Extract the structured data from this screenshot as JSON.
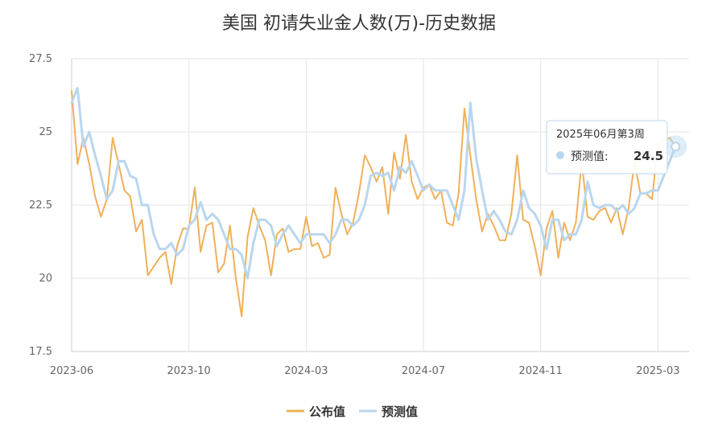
{
  "chart_data": {
    "type": "line",
    "title": "美国 初请失业金人数(万)-历史数据",
    "xlabel": "",
    "ylabel": "",
    "ylim": [
      17.5,
      27.5
    ],
    "yticks": [
      "17.5",
      "20",
      "22.5",
      "25",
      "27.5"
    ],
    "x_ticks": [
      {
        "label": "2023-06",
        "index": 0
      },
      {
        "label": "2023-10",
        "index": 20
      },
      {
        "label": "2024-03",
        "index": 40
      },
      {
        "label": "2024-07",
        "index": 60
      },
      {
        "label": "2024-11",
        "index": 80
      },
      {
        "label": "2025-03",
        "index": 100
      }
    ],
    "grid": true,
    "legend": "bottom",
    "series": [
      {
        "name": "公布值",
        "color": "#f0b05a",
        "values": [
          26.4,
          23.9,
          24.8,
          23.9,
          22.8,
          22.1,
          22.7,
          24.8,
          23.9,
          23.0,
          22.8,
          21.6,
          22.0,
          20.1,
          20.4,
          20.7,
          20.9,
          19.8,
          21.1,
          21.7,
          21.7,
          23.1,
          20.9,
          21.8,
          21.9,
          20.2,
          20.5,
          21.8,
          20.0,
          18.7,
          21.4,
          22.4,
          21.8,
          21.3,
          20.1,
          21.5,
          21.7,
          20.9,
          21.0,
          21.0,
          22.1,
          21.1,
          21.2,
          20.7,
          20.8,
          23.1,
          22.2,
          21.5,
          21.9,
          22.9,
          24.2,
          23.8,
          23.3,
          23.8,
          22.2,
          24.3,
          23.4,
          24.9,
          23.3,
          22.7,
          23.1,
          23.2,
          22.7,
          23.0,
          21.9,
          21.8,
          22.9,
          25.8,
          24.2,
          22.7,
          21.6,
          22.2,
          21.8,
          21.3,
          21.3,
          22.2,
          24.2,
          22.0,
          21.9,
          21.1,
          20.1,
          21.7,
          22.3,
          20.7,
          21.9,
          21.3,
          21.9,
          24.0,
          22.1,
          22.0,
          22.3,
          22.4,
          21.9,
          22.4,
          21.5,
          22.4,
          24.0,
          22.9,
          22.9,
          22.7,
          24.6,
          24.7,
          24.8,
          24.5
        ]
      },
      {
        "name": "预测值",
        "color": "#b9d6ee",
        "values": [
          26.0,
          26.5,
          24.5,
          25.0,
          24.2,
          23.5,
          22.7,
          23.0,
          24.0,
          24.0,
          23.5,
          23.4,
          22.5,
          22.5,
          21.5,
          21.0,
          21.0,
          21.2,
          20.8,
          21.0,
          21.8,
          22.0,
          22.6,
          22.0,
          22.2,
          22.0,
          21.5,
          21.0,
          21.0,
          20.8,
          20.0,
          21.2,
          22.0,
          22.0,
          21.8,
          21.1,
          21.5,
          21.8,
          21.5,
          21.2,
          21.5,
          21.5,
          21.5,
          21.5,
          21.2,
          21.5,
          22.0,
          22.0,
          21.8,
          22.0,
          22.5,
          23.5,
          23.6,
          23.5,
          23.6,
          23.0,
          23.8,
          23.6,
          24.0,
          23.5,
          23.0,
          23.2,
          23.0,
          23.0,
          23.0,
          22.5,
          22.0,
          23.0,
          26.0,
          24.1,
          23.0,
          22.0,
          22.3,
          22.0,
          21.6,
          21.5,
          22.0,
          23.0,
          22.4,
          22.2,
          21.8,
          21.0,
          22.0,
          22.0,
          21.3,
          21.5,
          21.5,
          22.0,
          23.3,
          22.5,
          22.4,
          22.5,
          22.5,
          22.3,
          22.5,
          22.2,
          22.4,
          22.9,
          22.9,
          23.0,
          23.0,
          23.5,
          24.0,
          24.5
        ]
      }
    ],
    "tooltip": {
      "title": "2025年06月第3周",
      "series_name": "预测值",
      "series_label": "预测值: ",
      "value": "24.5",
      "point_index": 103
    }
  }
}
